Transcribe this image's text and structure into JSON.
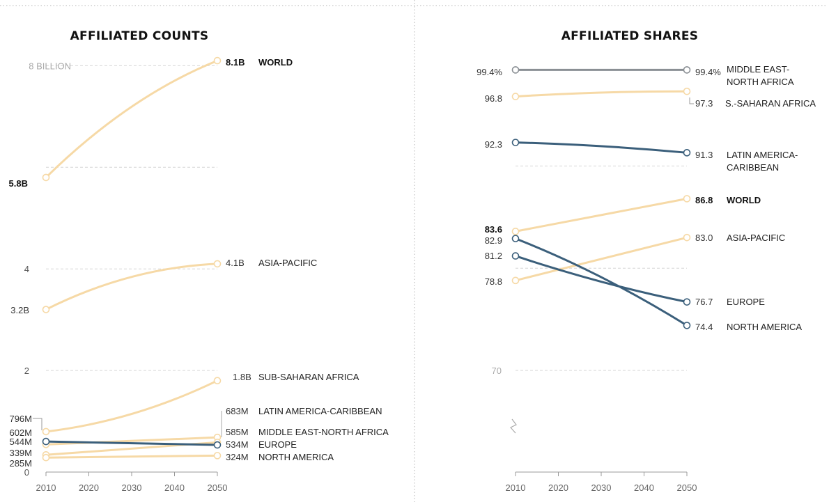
{
  "colors": {
    "tan": "#f6d9a6",
    "blue": "#3b5f7b",
    "gray": "#8a8f94",
    "grid": "#d6d6d6",
    "divider": "#b5b5b5"
  },
  "chart_data": [
    {
      "type": "line",
      "title": "AFFILIATED COUNTS",
      "x": [
        2010,
        2050
      ],
      "xticks": [
        "2010",
        "2020",
        "2030",
        "2040",
        "2050"
      ],
      "yticks": [
        {
          "value": 0,
          "label": "0"
        },
        {
          "value": 2,
          "label": "2"
        },
        {
          "value": 4,
          "label": "4"
        },
        {
          "value": 8,
          "label": "8 BILLION"
        }
      ],
      "ylim": [
        0,
        8.1
      ],
      "grid": true,
      "series": [
        {
          "name": "WORLD",
          "values": [
            5.8,
            8.1
          ],
          "start_label": "5.8B",
          "end_label": "8.1B",
          "color": "tan",
          "bold": true
        },
        {
          "name": "ASIA-PACIFIC",
          "values": [
            3.2,
            4.1
          ],
          "start_label": "3.2B",
          "end_label": "4.1B",
          "color": "tan"
        },
        {
          "name": "SUB-SAHARAN AFRICA",
          "values": [
            0.796,
            1.8
          ],
          "start_label": "796M",
          "end_label": "1.8B",
          "color": "tan"
        },
        {
          "name": "LATIN AMERICA-CARIBBEAN",
          "values": [
            0.544,
            0.683
          ],
          "start_label": "544M",
          "end_label": "683M",
          "color": "tan"
        },
        {
          "name": "MIDDLE EAST-NORTH AFRICA",
          "values": [
            0.339,
            0.585
          ],
          "start_label": "339M",
          "end_label": "585M",
          "color": "tan"
        },
        {
          "name": "EUROPE",
          "values": [
            0.602,
            0.534
          ],
          "start_label": "602M",
          "end_label": "534M",
          "color": "blue"
        },
        {
          "name": "NORTH AMERICA",
          "values": [
            0.285,
            0.324
          ],
          "start_label": "285M",
          "end_label": "324M",
          "color": "tan"
        }
      ]
    },
    {
      "type": "line",
      "title": "AFFILIATED SHARES",
      "x": [
        2010,
        2050
      ],
      "xticks": [
        "2010",
        "2020",
        "2030",
        "2040",
        "2050"
      ],
      "yticks": [
        {
          "value": 70,
          "label": "70"
        }
      ],
      "ylim": [
        70,
        99.4
      ],
      "axis_break": true,
      "grid": true,
      "series": [
        {
          "name": "MIDDLE EAST- NORTH AFRICA",
          "values": [
            99.4,
            99.4
          ],
          "start_label": "99.4%",
          "end_label": "99.4%",
          "color": "gray"
        },
        {
          "name": "S.-SAHARAN AFRICA",
          "values": [
            96.8,
            97.3
          ],
          "start_label": "96.8",
          "end_label": "97.3",
          "color": "tan"
        },
        {
          "name": "LATIN AMERICA- CARIBBEAN",
          "values": [
            92.3,
            91.3
          ],
          "start_label": "92.3",
          "end_label": "91.3",
          "color": "blue"
        },
        {
          "name": "WORLD",
          "values": [
            83.6,
            86.8
          ],
          "start_label": "83.6",
          "end_label": "86.8",
          "color": "tan",
          "bold": true
        },
        {
          "name": "ASIA-PACIFIC",
          "values": [
            78.8,
            83.0
          ],
          "start_label": "78.8",
          "end_label": "83.0",
          "color": "tan"
        },
        {
          "name": "EUROPE",
          "values": [
            81.2,
            76.7
          ],
          "start_label": "81.2",
          "end_label": "76.7",
          "color": "blue"
        },
        {
          "name": "NORTH AMERICA",
          "values": [
            82.9,
            74.4
          ],
          "start_label": "82.9",
          "end_label": "74.4",
          "color": "blue"
        }
      ]
    }
  ]
}
